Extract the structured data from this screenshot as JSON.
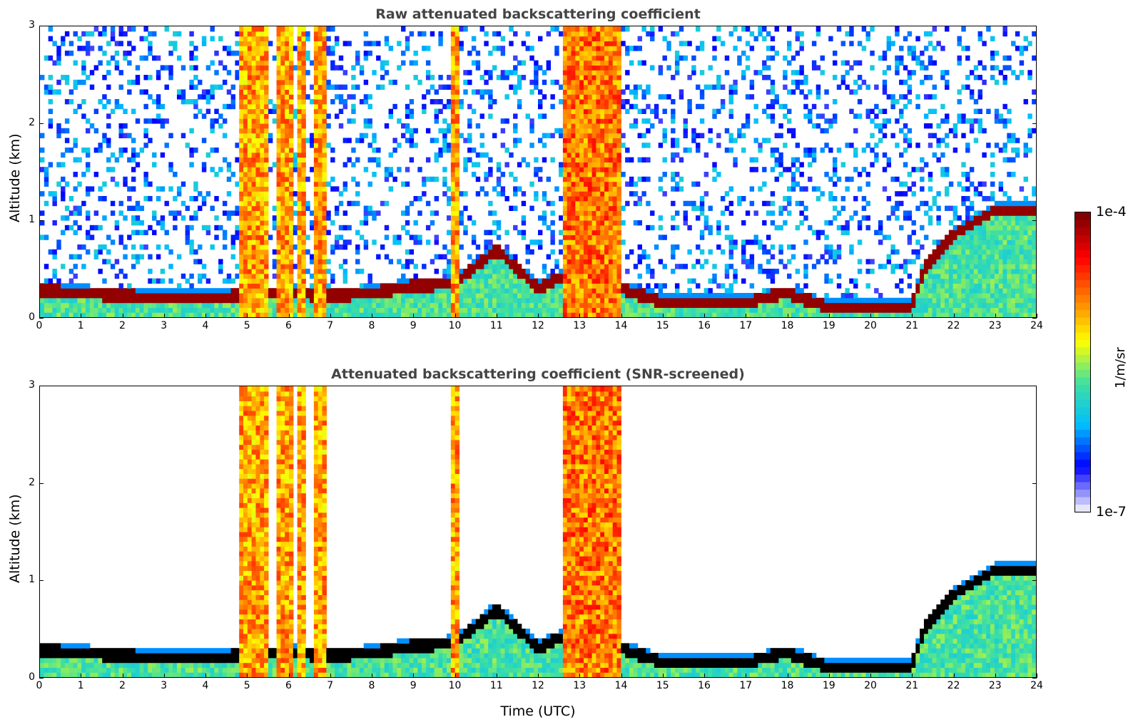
{
  "chart_data": [
    {
      "type": "heatmap",
      "title": "Raw attenuated backscattering coefficient",
      "xlabel": "",
      "ylabel": "Altitude (km)",
      "xlim": [
        0,
        24
      ],
      "ylim": [
        0,
        3
      ],
      "x_ticks": [
        "0",
        "1",
        "2",
        "3",
        "4",
        "5",
        "6",
        "7",
        "8",
        "9",
        "10",
        "11",
        "12",
        "13",
        "14",
        "15",
        "16",
        "17",
        "18",
        "19",
        "20",
        "21",
        "22",
        "23",
        "24"
      ],
      "y_ticks": [
        "0",
        "1",
        "2",
        "3"
      ],
      "layer_height_km": [
        [
          0,
          0.28
        ],
        [
          1,
          0.25
        ],
        [
          2,
          0.22
        ],
        [
          3,
          0.2
        ],
        [
          4,
          0.2
        ],
        [
          4.8,
          0.22
        ],
        [
          6,
          0.25
        ],
        [
          7,
          0.22
        ],
        [
          8,
          0.25
        ],
        [
          9,
          0.32
        ],
        [
          10,
          0.35
        ],
        [
          11,
          0.7
        ],
        [
          12,
          0.3
        ],
        [
          13,
          0.5
        ],
        [
          14,
          0.3
        ],
        [
          15,
          0.15
        ],
        [
          16,
          0.15
        ],
        [
          17,
          0.15
        ],
        [
          18,
          0.25
        ],
        [
          19,
          0.1
        ],
        [
          20,
          0.1
        ],
        [
          21,
          0.1
        ],
        [
          21.3,
          0.5
        ],
        [
          22,
          0.85
        ],
        [
          23,
          1.1
        ],
        [
          24,
          1.1
        ]
      ]
    },
    {
      "type": "heatmap",
      "title": "Attenuated backscattering coefficient (SNR-screened)",
      "xlabel": "Time (UTC)",
      "ylabel": "Altitude (km)",
      "xlim": [
        0,
        24
      ],
      "ylim": [
        0,
        3
      ],
      "x_ticks": [
        "0",
        "1",
        "2",
        "3",
        "4",
        "5",
        "6",
        "7",
        "8",
        "9",
        "10",
        "11",
        "12",
        "13",
        "14",
        "15",
        "16",
        "17",
        "18",
        "19",
        "20",
        "21",
        "22",
        "23",
        "24"
      ],
      "y_ticks": [
        "0",
        "1",
        "2",
        "3"
      ]
    }
  ],
  "colorbar": {
    "label": "1/m/sr",
    "max_label": "1e-4",
    "min_label": "1e-7",
    "scale": "log",
    "range": [
      1e-07,
      0.0001
    ],
    "colors": [
      "#e6e6fa",
      "#0000ff",
      "#00bfff",
      "#40e0a0",
      "#ffff00",
      "#ff8000",
      "#ff0000",
      "#800000"
    ]
  }
}
